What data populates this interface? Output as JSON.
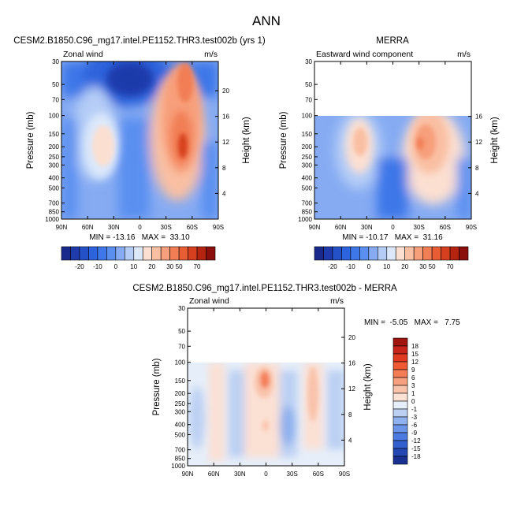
{
  "figure": {
    "title": "ANN"
  },
  "chart_data": [
    {
      "id": "model",
      "type": "contour",
      "title": "CESM2.B1850.C96_mg17.intel.PE1152.THR3.test002b (yrs 1)",
      "left_label": "Zonal wind",
      "right_label": "m/s",
      "xlabel": "",
      "ylabel": "Pressure (mb)",
      "ylabel_right": "Height (km)",
      "x_ticks": [
        "90N",
        "60N",
        "30N",
        "0",
        "30S",
        "60S",
        "90S"
      ],
      "y_ticks": [
        "30",
        "50",
        "70",
        "100",
        "150",
        "200",
        "250",
        "300",
        "400",
        "500",
        "700",
        "850",
        "1000"
      ],
      "y_right_ticks": [
        "20",
        "16",
        "12",
        "8",
        "4"
      ],
      "ylim": [
        1000,
        30
      ],
      "stats": "MIN = -13.16   MAX =  33.10",
      "min": -13.16,
      "max": 33.1,
      "colorbar": {
        "labels": [
          "-20",
          "-10",
          "0",
          "10",
          "20",
          "30",
          "50",
          "70"
        ],
        "levels": [
          -25,
          -20,
          -15,
          -10,
          -5,
          0,
          5,
          10,
          15,
          20,
          25,
          30,
          40,
          50,
          60,
          70
        ],
        "colors": [
          "#1a2a8c",
          "#1f3aab",
          "#2450c8",
          "#2d63dc",
          "#3d77e8",
          "#5a8ff0",
          "#86abf2",
          "#b5cdf6",
          "#dce8fa",
          "#fbdfd1",
          "#f9bfa3",
          "#f79f7a",
          "#f17e55",
          "#e85d33",
          "#d7401f",
          "#b42410",
          "#8a0f0a"
        ]
      }
    },
    {
      "id": "obs",
      "type": "contour",
      "title": "MERRA",
      "left_label": "Eastward wind component",
      "right_label": "m/s",
      "xlabel": "",
      "ylabel": "Pressure (mb)",
      "ylabel_right": "Height (km)",
      "x_ticks": [
        "90N",
        "60N",
        "30N",
        "0",
        "30S",
        "60S",
        "90S"
      ],
      "y_ticks": [
        "30",
        "50",
        "70",
        "100",
        "150",
        "200",
        "250",
        "300",
        "400",
        "500",
        "700",
        "850",
        "1000"
      ],
      "y_right_ticks": [
        "16",
        "12",
        "8",
        "4"
      ],
      "ylim": [
        1000,
        30
      ],
      "stats": "MIN = -10.17   MAX =  31.16",
      "min": -10.17,
      "max": 31.16,
      "colorbar": {
        "labels": [
          "-20",
          "-10",
          "0",
          "10",
          "20",
          "30",
          "50",
          "70"
        ],
        "levels": [
          -25,
          -20,
          -15,
          -10,
          -5,
          0,
          5,
          10,
          15,
          20,
          25,
          30,
          40,
          50,
          60,
          70
        ],
        "colors": [
          "#1a2a8c",
          "#1f3aab",
          "#2450c8",
          "#2d63dc",
          "#3d77e8",
          "#5a8ff0",
          "#86abf2",
          "#b5cdf6",
          "#dce8fa",
          "#fbdfd1",
          "#f9bfa3",
          "#f79f7a",
          "#f17e55",
          "#e85d33",
          "#d7401f",
          "#b42410",
          "#8a0f0a"
        ]
      }
    },
    {
      "id": "diff",
      "type": "contour",
      "title": "CESM2.B1850.C96_mg17.intel.PE1152.THR3.test002b - MERRA",
      "left_label": "Zonal wind",
      "right_label": "m/s",
      "xlabel": "",
      "ylabel": "Pressure (mb)",
      "ylabel_right": "Height (km)",
      "x_ticks": [
        "90N",
        "60N",
        "30N",
        "0",
        "30S",
        "60S",
        "90S"
      ],
      "y_ticks": [
        "30",
        "50",
        "70",
        "100",
        "150",
        "200",
        "250",
        "300",
        "400",
        "500",
        "700",
        "850",
        "1000"
      ],
      "y_right_ticks": [
        "20",
        "16",
        "12",
        "8",
        "4"
      ],
      "ylim": [
        1000,
        30
      ],
      "stats": "MIN =  -5.05   MAX =   7.75",
      "min": -5.05,
      "max": 7.75,
      "colorbar": {
        "labels": [
          "18",
          "15",
          "12",
          "9",
          "6",
          "3",
          "1",
          "0",
          "-1",
          "-3",
          "-6",
          "-9",
          "-12",
          "-15",
          "-18"
        ],
        "colors": [
          "#a1150f",
          "#c8251a",
          "#e03a20",
          "#ee5a33",
          "#f47d55",
          "#f7a07f",
          "#f9c3ab",
          "#fbe0d4",
          "#e6eef9",
          "#bcd0f3",
          "#8fb1ee",
          "#6b95e8",
          "#4d7ae0",
          "#3360cf",
          "#2447b3",
          "#18308f"
        ]
      }
    }
  ]
}
